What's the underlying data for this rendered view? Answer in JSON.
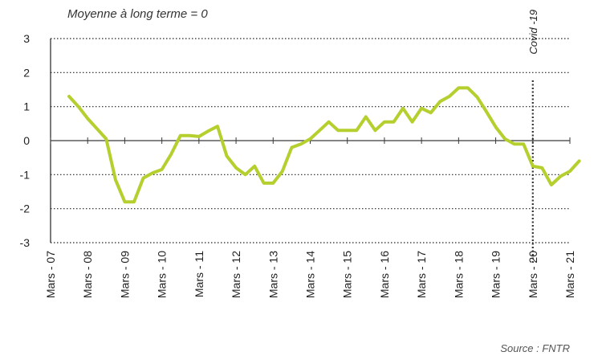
{
  "chart_data": {
    "type": "line",
    "subtitle": "Moyenne à long terme = 0",
    "source": "Source : FNTR",
    "annotation": "Covid -19",
    "annotation_x": 2020.0,
    "ylim": [
      -3,
      3
    ],
    "yticks": [
      3,
      2,
      1,
      0,
      -1,
      -2,
      -3
    ],
    "xlim": [
      2007.0,
      2021.0
    ],
    "xtick_values": [
      2007,
      2008,
      2009,
      2010,
      2011,
      2012,
      2013,
      2014,
      2015,
      2016,
      2017,
      2018,
      2019,
      2020,
      2021
    ],
    "xtick_labels": [
      "Mars - 07",
      "Mars - 08",
      "Mars - 09",
      "Mars - 10",
      "Mars - 11",
      "Mars - 12",
      "Mars - 13",
      "Mars - 14",
      "Mars - 15",
      "Mars - 16",
      "Mars - 17",
      "Mars - 18",
      "Mars - 19",
      "Mars - 20",
      "Mars - 21"
    ],
    "grid": true,
    "line_color": "#b5cf2f",
    "x": [
      2007.5,
      2007.75,
      2008.0,
      2008.25,
      2008.5,
      2008.75,
      2009.0,
      2009.25,
      2009.5,
      2009.75,
      2010.0,
      2010.25,
      2010.5,
      2010.75,
      2011.0,
      2011.25,
      2011.5,
      2011.75,
      2012.0,
      2012.25,
      2012.5,
      2012.75,
      2013.0,
      2013.25,
      2013.5,
      2013.75,
      2014.0,
      2014.25,
      2014.5,
      2014.75,
      2015.0,
      2015.25,
      2015.5,
      2015.75,
      2016.0,
      2016.25,
      2016.5,
      2016.75,
      2017.0,
      2017.25,
      2017.5,
      2017.75,
      2018.0,
      2018.25,
      2018.5,
      2018.75,
      2019.0,
      2019.25,
      2019.5,
      2019.75,
      2020.0,
      2020.25,
      2020.5,
      2020.75,
      2021.0,
      2021.25
    ],
    "values": [
      1.3,
      1.0,
      0.65,
      0.35,
      0.05,
      -1.15,
      -1.8,
      -1.8,
      -1.1,
      -0.95,
      -0.85,
      -0.4,
      0.15,
      0.15,
      0.12,
      0.28,
      0.42,
      -0.45,
      -0.8,
      -1.0,
      -0.75,
      -1.25,
      -1.25,
      -0.9,
      -0.2,
      -0.1,
      0.05,
      0.3,
      0.55,
      0.3,
      0.3,
      0.3,
      0.7,
      0.3,
      0.55,
      0.55,
      0.95,
      0.55,
      0.95,
      0.82,
      1.15,
      1.3,
      1.55,
      1.55,
      1.28,
      0.85,
      0.4,
      0.05,
      -0.1,
      -0.1,
      -0.75,
      -0.8,
      -1.3,
      -1.05,
      -0.9,
      -0.6
    ]
  }
}
